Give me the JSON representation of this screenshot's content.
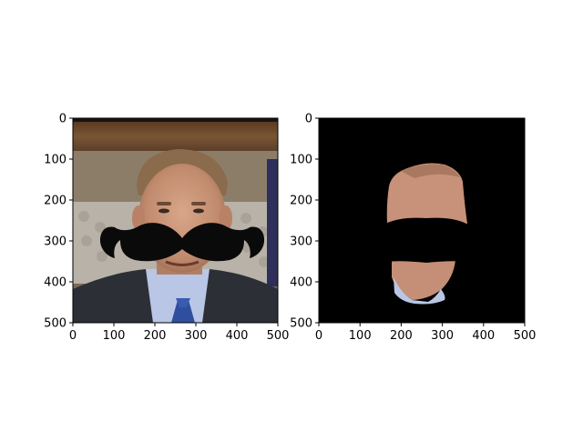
{
  "chart_data": [
    {
      "type": "image",
      "title": "",
      "xlabel": "",
      "ylabel": "",
      "xlim": [
        0,
        500
      ],
      "ylim": [
        500,
        0
      ],
      "xticks": [
        "0",
        "100",
        "200",
        "300",
        "400",
        "500"
      ],
      "yticks": [
        "0",
        "100",
        "200",
        "300",
        "400",
        "500"
      ],
      "content": "face photo with mustache overlay"
    },
    {
      "type": "image",
      "title": "",
      "xlabel": "",
      "ylabel": "",
      "xlim": [
        0,
        500
      ],
      "ylim": [
        500,
        0
      ],
      "xticks": [
        "0",
        "100",
        "200",
        "300",
        "400",
        "500"
      ],
      "yticks": [
        "0",
        "100",
        "200",
        "300",
        "400",
        "500"
      ],
      "content": "face segmentation mask with mustache region removed"
    }
  ],
  "colors": {
    "mustache": "#0b0a0a",
    "mask_background": "#000000",
    "skin": "#c79378",
    "suit": "#2c2f36",
    "tie": "#2f4f9e",
    "shirt": "#b9c6e5"
  }
}
